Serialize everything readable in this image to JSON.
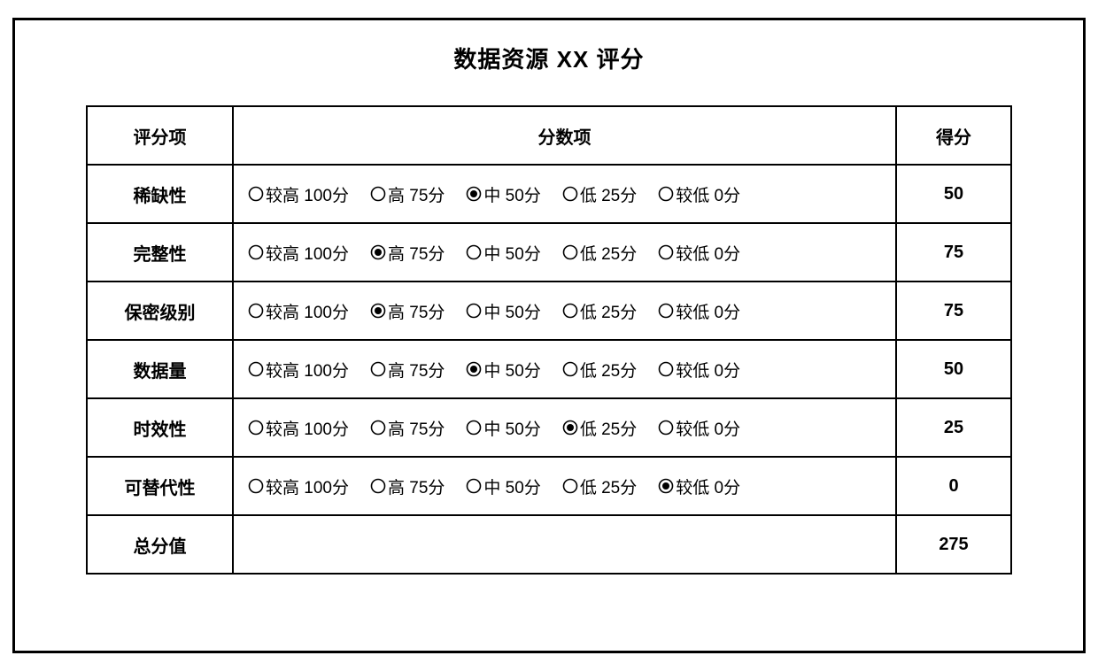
{
  "title": "数据资源 XX 评分",
  "headers": {
    "item": "评分项",
    "options": "分数项",
    "score": "得分"
  },
  "options": [
    {
      "label": "较高 100分"
    },
    {
      "label": "高 75分"
    },
    {
      "label": "中 50分"
    },
    {
      "label": "低 25分"
    },
    {
      "label": "较低 0分"
    }
  ],
  "rows": [
    {
      "item": "稀缺性",
      "selected": 2,
      "score": "50"
    },
    {
      "item": "完整性",
      "selected": 1,
      "score": "75"
    },
    {
      "item": "保密级别",
      "selected": 1,
      "score": "75"
    },
    {
      "item": "数据量",
      "selected": 2,
      "score": "50"
    },
    {
      "item": "时效性",
      "selected": 3,
      "score": "25"
    },
    {
      "item": "可替代性",
      "selected": 4,
      "score": "0"
    }
  ],
  "total": {
    "label": "总分值",
    "score": "275"
  },
  "colors": {
    "border": "#000000",
    "background": "#ffffff",
    "text": "#000000"
  }
}
